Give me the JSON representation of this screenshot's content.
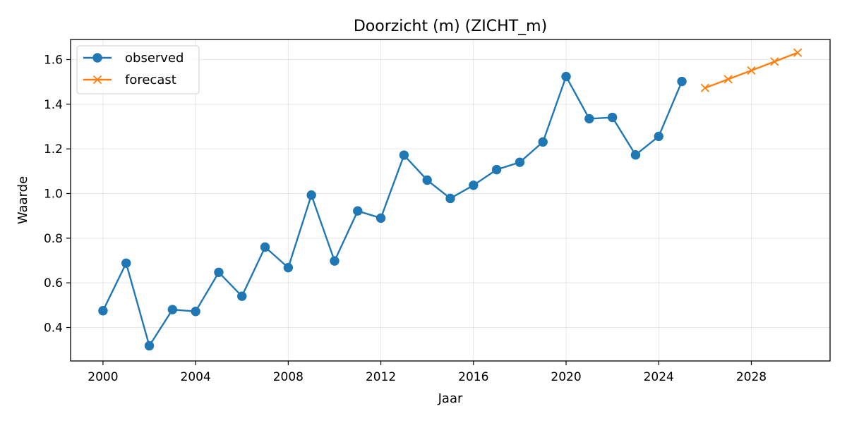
{
  "chart_data": {
    "type": "line",
    "title": "Doorzicht (m) (ZICHT_m)",
    "xlabel": "Jaar",
    "ylabel": "Waarde",
    "xlim": [
      1998.6,
      2031.4
    ],
    "ylim": [
      0.25,
      1.69
    ],
    "xticks": [
      2000,
      2004,
      2008,
      2012,
      2016,
      2020,
      2024,
      2028
    ],
    "yticks": [
      0.4,
      0.6,
      0.8,
      1.0,
      1.2,
      1.4,
      1.6
    ],
    "ytick_labels": [
      "0.4",
      "0.6",
      "0.8",
      "1.0",
      "1.2",
      "1.4",
      "1.6"
    ],
    "grid": true,
    "legend_position": "top-left",
    "series": [
      {
        "name": "observed",
        "color": "#1f77b4",
        "marker": "circle",
        "x": [
          2000,
          2001,
          2002,
          2003,
          2004,
          2005,
          2006,
          2007,
          2008,
          2009,
          2010,
          2011,
          2012,
          2013,
          2014,
          2015,
          2016,
          2017,
          2018,
          2019,
          2020,
          2021,
          2022,
          2023,
          2024,
          2025
        ],
        "values": [
          0.475,
          0.688,
          0.318,
          0.48,
          0.472,
          0.647,
          0.54,
          0.76,
          0.668,
          0.993,
          0.698,
          0.922,
          0.89,
          1.172,
          1.06,
          0.978,
          1.037,
          1.107,
          1.14,
          1.231,
          1.524,
          1.335,
          1.341,
          1.173,
          1.256,
          1.502
        ]
      },
      {
        "name": "forecast",
        "color": "#ff7f0e",
        "marker": "x",
        "x": [
          2026,
          2027,
          2028,
          2029,
          2030
        ],
        "values": [
          1.473,
          1.512,
          1.551,
          1.591,
          1.631
        ]
      }
    ]
  }
}
